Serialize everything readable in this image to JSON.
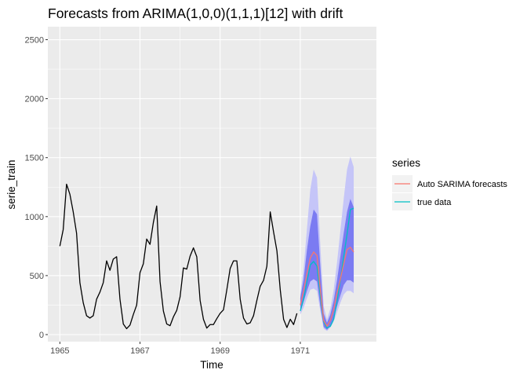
{
  "chart_data": {
    "type": "line",
    "title": "Forecasts from ARIMA(1,0,0)(1,1,1)[12] with drift",
    "xlabel": "Time",
    "ylabel": "serie_train",
    "xlim": [
      1964.7,
      1972.9
    ],
    "ylim": [
      -60,
      2610
    ],
    "x_ticks": [
      1965,
      1967,
      1969,
      1971
    ],
    "x_tick_labels": [
      "1965",
      "1967",
      "1969",
      "1971"
    ],
    "y_ticks": [
      0,
      500,
      1000,
      1500,
      2000,
      2500
    ],
    "y_tick_labels": [
      "0",
      "500",
      "1000",
      "1500",
      "2000",
      "2500"
    ],
    "grid": true,
    "legend": {
      "title": "series",
      "position": "right",
      "items": [
        {
          "label": "Auto SARIMA forecasts",
          "color": "#f8766d"
        },
        {
          "label": "true data",
          "color": "#00bfc4"
        }
      ]
    },
    "colors": {
      "history": "#000000",
      "forecast": "#f8766d",
      "true_data": "#00bfc4",
      "band80": "#7b7bf2",
      "band95": "#c5c5f8",
      "panel": "#ebebeb",
      "grid": "#ffffff"
    },
    "history": {
      "x_start": 1965.0,
      "step": 0.08333,
      "values": [
        750,
        890,
        1275,
        1190,
        1040,
        860,
        440,
        270,
        160,
        140,
        160,
        300,
        360,
        440,
        625,
        545,
        640,
        660,
        300,
        90,
        50,
        80,
        170,
        250,
        525,
        600,
        810,
        765,
        950,
        1090,
        450,
        200,
        90,
        75,
        150,
        205,
        320,
        565,
        555,
        665,
        735,
        660,
        290,
        130,
        55,
        85,
        85,
        135,
        180,
        210,
        380,
        560,
        625,
        625,
        300,
        140,
        90,
        100,
        160,
        290,
        410,
        460,
        580,
        1040,
        870,
        710,
        380,
        130,
        60,
        130,
        85,
        180
      ]
    },
    "forecast": {
      "x_start": 1971.0,
      "step": 0.08333,
      "mean": [
        250,
        370,
        520,
        650,
        700,
        670,
        380,
        120,
        70,
        120,
        210,
        350,
        470,
        600,
        720,
        740,
        700
      ],
      "lo80": [
        200,
        280,
        370,
        450,
        470,
        450,
        240,
        65,
        40,
        75,
        140,
        240,
        330,
        420,
        460,
        460,
        440
      ],
      "hi80": [
        310,
        470,
        720,
        920,
        1060,
        1020,
        580,
        180,
        100,
        170,
        290,
        460,
        660,
        860,
        1040,
        1150,
        1080
      ],
      "lo95": [
        170,
        230,
        310,
        380,
        390,
        370,
        200,
        50,
        30,
        60,
        110,
        190,
        270,
        340,
        370,
        370,
        350
      ],
      "hi95": [
        340,
        560,
        900,
        1230,
        1400,
        1330,
        760,
        240,
        130,
        220,
        380,
        610,
        880,
        1150,
        1400,
        1510,
        1420
      ]
    },
    "true_data": {
      "x_start": 1971.0,
      "step": 0.08333,
      "values": [
        200,
        300,
        450,
        590,
        620,
        580,
        330,
        110,
        55,
        70,
        130,
        280,
        460,
        660,
        850,
        1060,
        1070
      ]
    }
  }
}
